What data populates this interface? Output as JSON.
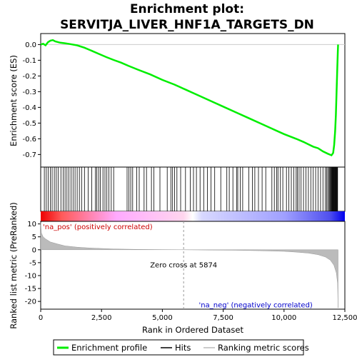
{
  "title_line1": "Enrichment plot:",
  "title_line2": "SERVITJA_LIVER_HNF1A_TARGETS_DN",
  "chart_data": {
    "type": "line",
    "x_axis": {
      "label": "Rank in Ordered Dataset",
      "range": [
        0,
        12500
      ],
      "ticks": [
        0,
        2500,
        5000,
        7500,
        10000,
        12500
      ],
      "tick_labels": [
        "0",
        "2,500",
        "5,000",
        "7,500",
        "10,000",
        "12,500"
      ]
    },
    "es_axis": {
      "label": "Enrichment score (ES)",
      "range": [
        -0.78,
        0.07
      ],
      "ticks": [
        0.0,
        -0.1,
        -0.2,
        -0.3,
        -0.4,
        -0.5,
        -0.6,
        -0.7
      ],
      "tick_labels": [
        "0.0",
        "-0.1",
        "-0.2",
        "-0.3",
        "-0.4",
        "-0.5",
        "-0.6",
        "-0.7"
      ]
    },
    "metric_axis": {
      "label": "Ranked list metric (PreRanked)",
      "range": [
        -23,
        11
      ],
      "ticks": [
        10,
        5,
        0,
        -5,
        -10,
        -15,
        -20
      ],
      "tick_labels": [
        "10",
        "5",
        "0",
        "-5",
        "-10",
        "-15",
        "-20"
      ]
    },
    "enrichment_profile": {
      "name": "Enrichment profile",
      "color": "#00ee00",
      "points": [
        [
          0,
          0.0
        ],
        [
          100,
          0.005
        ],
        [
          200,
          -0.005
        ],
        [
          300,
          0.015
        ],
        [
          400,
          0.025
        ],
        [
          500,
          0.028
        ],
        [
          600,
          0.02
        ],
        [
          800,
          0.012
        ],
        [
          1000,
          0.008
        ],
        [
          1200,
          0.003
        ],
        [
          1500,
          -0.005
        ],
        [
          1800,
          -0.02
        ],
        [
          2100,
          -0.04
        ],
        [
          2400,
          -0.06
        ],
        [
          2700,
          -0.08
        ],
        [
          3000,
          -0.098
        ],
        [
          3300,
          -0.115
        ],
        [
          3600,
          -0.135
        ],
        [
          4000,
          -0.16
        ],
        [
          4500,
          -0.19
        ],
        [
          5000,
          -0.225
        ],
        [
          5500,
          -0.255
        ],
        [
          6000,
          -0.29
        ],
        [
          6500,
          -0.325
        ],
        [
          7000,
          -0.36
        ],
        [
          7500,
          -0.395
        ],
        [
          8000,
          -0.43
        ],
        [
          8500,
          -0.465
        ],
        [
          9000,
          -0.5
        ],
        [
          9500,
          -0.535
        ],
        [
          10000,
          -0.57
        ],
        [
          10500,
          -0.6
        ],
        [
          10800,
          -0.62
        ],
        [
          11000,
          -0.635
        ],
        [
          11200,
          -0.65
        ],
        [
          11400,
          -0.66
        ],
        [
          11600,
          -0.68
        ],
        [
          11800,
          -0.695
        ],
        [
          11950,
          -0.705
        ],
        [
          12020,
          -0.69
        ],
        [
          12060,
          -0.64
        ],
        [
          12100,
          -0.55
        ],
        [
          12130,
          -0.45
        ],
        [
          12160,
          -0.3
        ],
        [
          12190,
          -0.15
        ],
        [
          12210,
          -0.05
        ],
        [
          12220,
          0.0
        ]
      ]
    },
    "hits": {
      "name": "Hits",
      "color": "#000000",
      "positions": [
        150,
        230,
        310,
        400,
        470,
        560,
        640,
        720,
        830,
        920,
        1000,
        1080,
        1160,
        1250,
        1330,
        1410,
        1500,
        1590,
        1680,
        1800,
        1950,
        2100,
        2250,
        2300,
        2380,
        2450,
        2560,
        2640,
        2720,
        2800,
        2900,
        3000,
        3550,
        3620,
        3700,
        3780,
        3950,
        4050,
        4250,
        4350,
        4550,
        4650,
        4900,
        5200,
        5350,
        5420,
        5500,
        5600,
        5750,
        5950,
        6150,
        6280,
        6400,
        6550,
        6700,
        6850,
        7000,
        7150,
        7400,
        7650,
        7750,
        7900,
        8050,
        8100,
        8200,
        8300,
        8550,
        8700,
        8800,
        8950,
        9100,
        9250,
        9500,
        9600,
        9700,
        9750,
        9850,
        9950,
        10100,
        10200,
        10300,
        10400,
        10500,
        10550,
        10620,
        10700,
        10800,
        10900,
        11000,
        11100,
        11200,
        11300,
        11400,
        11500,
        11600,
        11700,
        11750,
        11800,
        11850,
        11880,
        11910,
        11940,
        11960,
        11980,
        12000,
        12020,
        12040,
        12060,
        12080,
        12100,
        12120,
        12140,
        12160,
        12180,
        12200
      ]
    },
    "ranking_metric": {
      "name": "Ranking metric scores",
      "color": "#bbbbbb",
      "points": [
        [
          0,
          10.5
        ],
        [
          30,
          6.5
        ],
        [
          100,
          5.0
        ],
        [
          200,
          4.2
        ],
        [
          400,
          3.0
        ],
        [
          700,
          2.2
        ],
        [
          1000,
          1.5
        ],
        [
          1500,
          1.0
        ],
        [
          2000,
          0.7
        ],
        [
          2500,
          0.5
        ],
        [
          3000,
          0.3
        ],
        [
          4000,
          0.15
        ],
        [
          5000,
          0.05
        ],
        [
          5874,
          0.0
        ],
        [
          7000,
          -0.1
        ],
        [
          8000,
          -0.2
        ],
        [
          9000,
          -0.35
        ],
        [
          10000,
          -0.6
        ],
        [
          10500,
          -0.9
        ],
        [
          11000,
          -1.3
        ],
        [
          11400,
          -1.9
        ],
        [
          11700,
          -2.8
        ],
        [
          11900,
          -4.0
        ],
        [
          12050,
          -6.0
        ],
        [
          12150,
          -9.0
        ],
        [
          12200,
          -13.0
        ],
        [
          12220,
          -22.5
        ]
      ]
    },
    "zero_cross_label": "Zero cross at 5874",
    "zero_cross_rank": 5874,
    "pos_label": "'na_pos' (positively correlated)",
    "neg_label": "'na_neg' (negatively correlated)",
    "legend": [
      {
        "name": "Enrichment profile",
        "color": "#00ee00"
      },
      {
        "name": "Hits",
        "color": "#000000"
      },
      {
        "name": "Ranking metric scores",
        "color": "#bbbbbb"
      }
    ],
    "colors": {
      "pos_annot": "#cc0000",
      "neg_annot": "#0000cc",
      "bar_red": "#ee0000",
      "bar_blue": "#0000ee"
    }
  }
}
